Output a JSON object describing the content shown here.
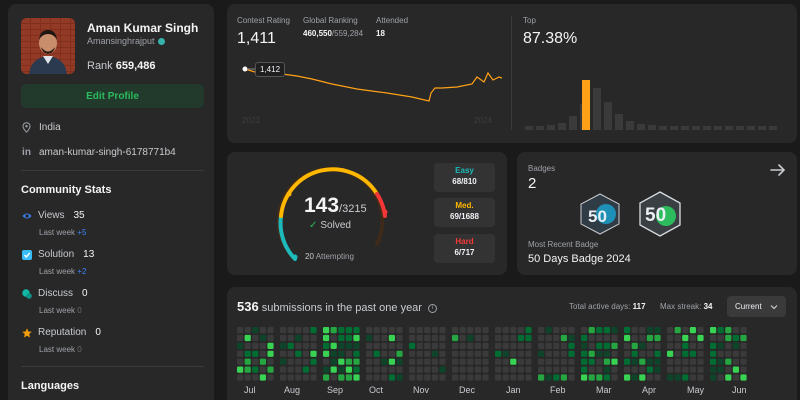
{
  "profile": {
    "name": "Aman Kumar Singh",
    "username": "Amansinghrajput",
    "rank_label": "Rank",
    "rank_value": "659,486",
    "edit_button": "Edit Profile",
    "location": "India",
    "linkedin": "aman-kumar-singh-6178771b4"
  },
  "community": {
    "title": "Community Stats",
    "stats": [
      {
        "label": "Views",
        "value": "35",
        "sub_label": "Last week",
        "sub_value": "+5",
        "icon": "eye-icon",
        "color": "#3b82f6"
      },
      {
        "label": "Solution",
        "value": "13",
        "sub_label": "Last week",
        "sub_value": "+2",
        "icon": "solution-check-icon",
        "color": "#38bdf8"
      },
      {
        "label": "Discuss",
        "value": "0",
        "sub_label": "Last week",
        "sub_value": "0",
        "icon": "discuss-icon",
        "color": "#14b8a6"
      },
      {
        "label": "Reputation",
        "value": "0",
        "sub_label": "Last week",
        "sub_value": "0",
        "icon": "star-icon",
        "color": "#f59e0b"
      }
    ]
  },
  "languages": {
    "title": "Languages"
  },
  "contest": {
    "rating_label": "Contest Rating",
    "rating_value": "1,411",
    "global_label": "Global Ranking",
    "global_value": "460,550",
    "global_total": "/559,284",
    "attended_label": "Attended",
    "attended_value": "18",
    "tooltip_value": "1,412",
    "year_start": "2023",
    "year_end": "2024",
    "top_label": "Top",
    "top_value": "87.38%"
  },
  "problems": {
    "solved": "143",
    "total": "/3215",
    "solved_label": "Solved",
    "attempting_count": "20",
    "attempting_label": "Attempting",
    "solved_fraction": 0.044,
    "difficulties": [
      {
        "name": "Easy",
        "count": "68/810",
        "color": "#1cbaba"
      },
      {
        "name": "Med.",
        "count": "69/1688",
        "color": "#ffb700"
      },
      {
        "name": "Hard",
        "count": "6/717",
        "color": "#f63737"
      }
    ]
  },
  "badges": {
    "label": "Badges",
    "count": "2",
    "recent_label": "Most Recent Badge",
    "recent_name": "50 Days Badge 2024",
    "badge_icons": [
      "50-days-badge-icon",
      "50-days-badge-2024-icon"
    ],
    "badge_texts": [
      "50",
      "50"
    ]
  },
  "submissions": {
    "count": "536",
    "title_text": "submissions in the past one year",
    "active_label": "Total active days:",
    "active_value": "117",
    "streak_label": "Max streak:",
    "streak_value": "34",
    "dropdown_value": "Current",
    "months": [
      "Jul",
      "Aug",
      "Sep",
      "Oct",
      "Nov",
      "Dec",
      "Jan",
      "Feb",
      "Mar",
      "Apr",
      "May",
      "Jun"
    ]
  },
  "colors": {
    "accent_green": "#2cbb5d",
    "contest_line": "#ffa116",
    "card_bg": "#282828"
  }
}
